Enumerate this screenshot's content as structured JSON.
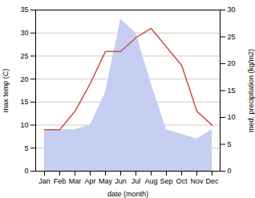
{
  "chart_data": {
    "type": "line",
    "categories": [
      "Jan",
      "Feb",
      "Mar",
      "Apr",
      "May",
      "Jun",
      "Jul",
      "Aug",
      "Sep",
      "Oct",
      "Nov",
      "Dec"
    ],
    "series": [
      {
        "type": "area",
        "color": "#c5cef0",
        "values": [
          9.0,
          9.0,
          9.0,
          10.0,
          17.0,
          33.0,
          30.0,
          19.0,
          9.0,
          8.0,
          7.0,
          9.0
        ]
      },
      {
        "type": "line",
        "color": "#c8524a",
        "values": [
          9.0,
          9.0,
          13.0,
          19.0,
          26.0,
          26.0,
          29.0,
          31.0,
          27.0,
          23.0,
          13.0,
          10.0
        ]
      }
    ],
    "xlabel": "date (month)",
    "ylabel": "max temp (C)",
    "y2label": "med. precipitation (kg/m2)",
    "ylim": [
      0,
      35
    ],
    "yticks": [
      0,
      5,
      10,
      15,
      20,
      25,
      30,
      35
    ],
    "y2lim": [
      0,
      30
    ],
    "y2ticks": [
      0,
      5,
      10,
      15,
      20,
      25,
      30
    ],
    "grid": true
  }
}
